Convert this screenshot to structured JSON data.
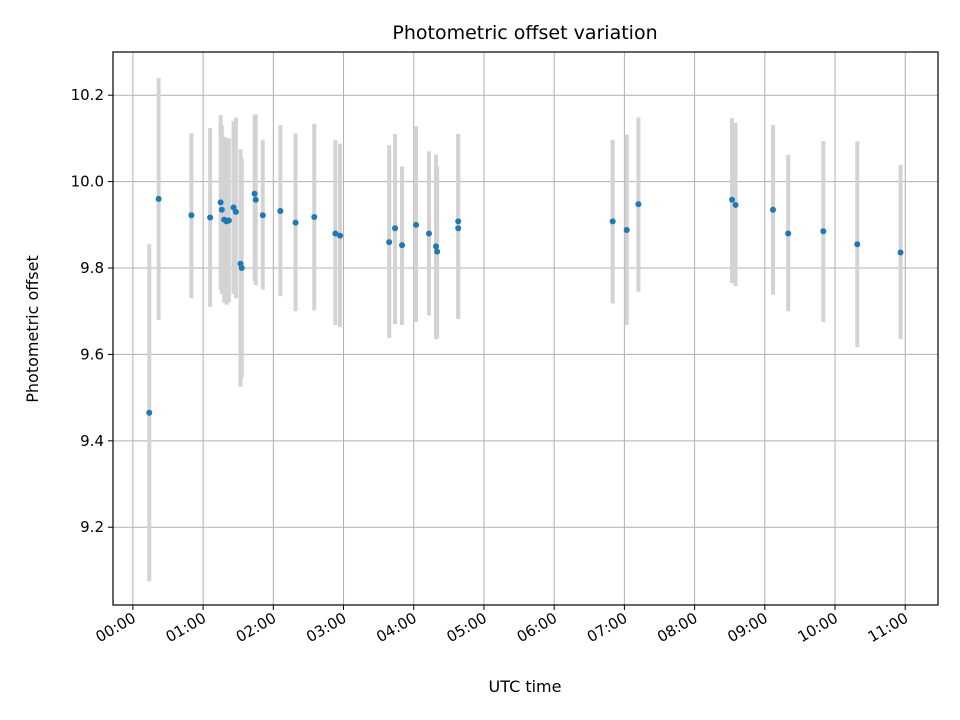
{
  "chart_data": {
    "type": "scatter",
    "title": "Photometric offset variation",
    "xlabel": "UTC time",
    "ylabel": "Photometric offset",
    "x_tick_labels": [
      "00:00",
      "01:00",
      "02:00",
      "03:00",
      "04:00",
      "05:00",
      "06:00",
      "07:00",
      "08:00",
      "09:00",
      "10:00",
      "11:00"
    ],
    "y_ticks": [
      9.2,
      9.4,
      9.6,
      9.8,
      10.0,
      10.2
    ],
    "y_tick_labels": [
      "9.2",
      "9.4",
      "9.6",
      "9.8",
      "10.0",
      "10.2"
    ],
    "xlim": [
      "-00:17",
      "11:28"
    ],
    "ylim": [
      9.02,
      10.3
    ],
    "grid": true,
    "colors": {
      "point": "#1f77b4",
      "errorbar": "#d3d3d3",
      "grid": "#b0b0b0"
    },
    "series": [
      {
        "points": [
          {
            "x": "00:14",
            "y": 9.465,
            "lo": 9.075,
            "hi": 9.855
          },
          {
            "x": "00:22",
            "y": 9.96,
            "lo": 9.68,
            "hi": 10.24
          },
          {
            "x": "00:50",
            "y": 9.922,
            "lo": 9.73,
            "hi": 10.112
          },
          {
            "x": "01:06",
            "y": 9.917,
            "lo": 9.71,
            "hi": 10.124
          },
          {
            "x": "01:15",
            "y": 9.952,
            "lo": 9.75,
            "hi": 10.154
          },
          {
            "x": "01:16",
            "y": 9.935,
            "lo": 9.74,
            "hi": 10.13
          },
          {
            "x": "01:18",
            "y": 9.912,
            "lo": 9.72,
            "hi": 10.104
          },
          {
            "x": "01:20",
            "y": 9.908,
            "lo": 9.715,
            "hi": 10.101
          },
          {
            "x": "01:22",
            "y": 9.91,
            "lo": 9.72,
            "hi": 10.1
          },
          {
            "x": "01:26",
            "y": 9.94,
            "lo": 9.74,
            "hi": 10.14
          },
          {
            "x": "01:28",
            "y": 9.93,
            "lo": 9.73,
            "hi": 10.148
          },
          {
            "x": "01:32",
            "y": 9.81,
            "lo": 9.525,
            "hi": 10.075
          },
          {
            "x": "01:33",
            "y": 9.8,
            "lo": 9.545,
            "hi": 10.055
          },
          {
            "x": "01:44",
            "y": 9.972,
            "lo": 9.77,
            "hi": 10.155
          },
          {
            "x": "01:45",
            "y": 9.958,
            "lo": 9.76,
            "hi": 10.156
          },
          {
            "x": "01:51",
            "y": 9.922,
            "lo": 9.75,
            "hi": 10.096
          },
          {
            "x": "02:06",
            "y": 9.932,
            "lo": 9.735,
            "hi": 10.131
          },
          {
            "x": "02:19",
            "y": 9.905,
            "lo": 9.7,
            "hi": 10.111
          },
          {
            "x": "02:35",
            "y": 9.918,
            "lo": 9.702,
            "hi": 10.134
          },
          {
            "x": "02:53",
            "y": 9.88,
            "lo": 9.668,
            "hi": 10.096
          },
          {
            "x": "02:57",
            "y": 9.875,
            "lo": 9.663,
            "hi": 10.088
          },
          {
            "x": "03:39",
            "y": 9.86,
            "lo": 9.638,
            "hi": 10.084
          },
          {
            "x": "03:44",
            "y": 9.892,
            "lo": 9.67,
            "hi": 10.11
          },
          {
            "x": "03:50",
            "y": 9.853,
            "lo": 9.668,
            "hi": 10.035
          },
          {
            "x": "04:02",
            "y": 9.9,
            "lo": 9.675,
            "hi": 10.128
          },
          {
            "x": "04:13",
            "y": 9.88,
            "lo": 9.69,
            "hi": 10.07
          },
          {
            "x": "04:19",
            "y": 9.85,
            "lo": 9.635,
            "hi": 10.063
          },
          {
            "x": "04:20",
            "y": 9.838,
            "lo": 9.638,
            "hi": 10.035
          },
          {
            "x": "04:38",
            "y": 9.908,
            "lo": 9.682,
            "hi": 10.11
          },
          {
            "x": "04:38",
            "y": 9.892,
            "lo": 9.682,
            "hi": 10.11
          },
          {
            "x": "06:50",
            "y": 9.908,
            "lo": 9.718,
            "hi": 10.097
          },
          {
            "x": "07:02",
            "y": 9.888,
            "lo": 9.668,
            "hi": 10.109
          },
          {
            "x": "07:12",
            "y": 9.948,
            "lo": 9.745,
            "hi": 10.148
          },
          {
            "x": "08:32",
            "y": 9.958,
            "lo": 9.765,
            "hi": 10.147
          },
          {
            "x": "08:35",
            "y": 9.946,
            "lo": 9.758,
            "hi": 10.136
          },
          {
            "x": "09:07",
            "y": 9.935,
            "lo": 9.738,
            "hi": 10.131
          },
          {
            "x": "09:20",
            "y": 9.88,
            "lo": 9.7,
            "hi": 10.062
          },
          {
            "x": "09:50",
            "y": 9.885,
            "lo": 9.675,
            "hi": 10.094
          },
          {
            "x": "10:19",
            "y": 9.855,
            "lo": 9.617,
            "hi": 10.093
          },
          {
            "x": "10:56",
            "y": 9.836,
            "lo": 9.635,
            "hi": 10.039
          }
        ]
      }
    ]
  }
}
